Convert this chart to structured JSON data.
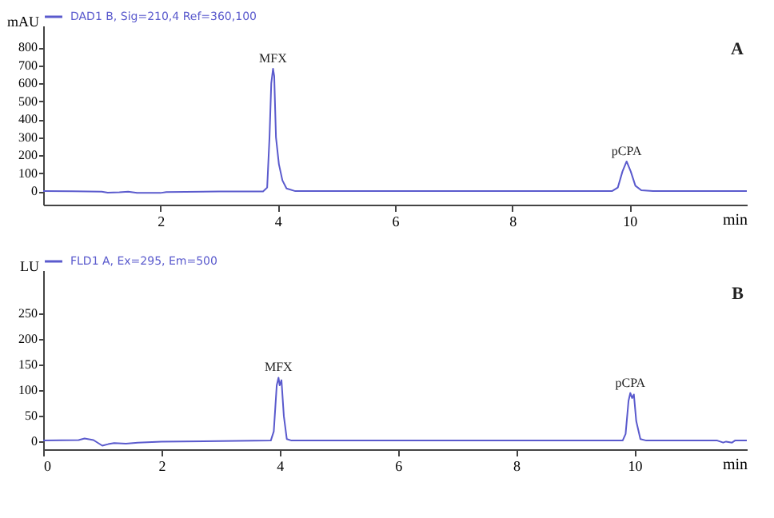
{
  "chart_data": [
    {
      "type": "line",
      "xlabel": "min",
      "ylabel": "mAU",
      "xlim": [
        0,
        12
      ],
      "ylim": [
        -75,
        920
      ],
      "xticks": [
        2,
        4,
        6,
        8,
        10
      ],
      "yticks": [
        0,
        100,
        200,
        300,
        400,
        500,
        600,
        700,
        800
      ],
      "grid": false,
      "legend": "top left",
      "annotations": [
        {
          "text": "MFX",
          "x": 3.92,
          "y": 680
        },
        {
          "text": "pCPA",
          "x": 9.95,
          "y": 165
        },
        "A"
      ],
      "series": [
        {
          "name": "DAD1 B, Sig=210,4 Ref=360,100",
          "color": "#5a5acd",
          "x": [
            0,
            0.5,
            1.0,
            1.1,
            1.3,
            1.45,
            1.6,
            2.0,
            2.1,
            3.0,
            3.75,
            3.82,
            3.86,
            3.89,
            3.92,
            3.94,
            3.97,
            4.02,
            4.08,
            4.15,
            4.3,
            6,
            9.7,
            9.8,
            9.88,
            9.95,
            10.02,
            10.1,
            10.2,
            10.4,
            12
          ],
          "values": [
            0,
            -1,
            -3,
            -8,
            -6,
            -3,
            -9,
            -10,
            -5,
            -2,
            -2,
            20,
            300,
            600,
            680,
            640,
            300,
            150,
            60,
            15,
            0,
            0,
            0,
            20,
            110,
            165,
            110,
            30,
            5,
            0,
            0
          ]
        }
      ]
    },
    {
      "type": "line",
      "xlabel": "min",
      "ylabel": "LU",
      "xlim": [
        0,
        11.9
      ],
      "ylim": [
        -15,
        335
      ],
      "xticks": [
        0,
        2,
        4,
        6,
        8,
        10
      ],
      "yticks": [
        0,
        50,
        100,
        150,
        200,
        250
      ],
      "grid": false,
      "legend": "top left",
      "annotations": [
        {
          "text": "MFX",
          "x": 3.98,
          "y": 125
        },
        {
          "text": "pCPA",
          "x": 9.93,
          "y": 95
        },
        "B"
      ],
      "series": [
        {
          "name": "FLD1 A, Ex=295, Em=500",
          "color": "#5a5acd",
          "x": [
            0,
            0.6,
            0.7,
            0.85,
            1.0,
            1.1,
            1.2,
            1.4,
            1.6,
            2,
            3,
            3.85,
            3.9,
            3.95,
            3.98,
            4.0,
            4.03,
            4.07,
            4.12,
            4.2,
            9.8,
            9.85,
            9.9,
            9.93,
            9.96,
            9.99,
            10.03,
            10.1,
            10.2,
            11.4,
            11.5,
            11.55,
            11.65,
            11.7,
            11.9
          ],
          "values": [
            2,
            3,
            6,
            3,
            -8,
            -5,
            -3,
            -4,
            -2,
            0,
            1,
            2,
            20,
            110,
            125,
            110,
            120,
            50,
            5,
            2,
            2,
            15,
            80,
            95,
            85,
            92,
            40,
            5,
            2,
            2,
            -2,
            0,
            -2,
            2,
            2
          ]
        }
      ]
    }
  ]
}
